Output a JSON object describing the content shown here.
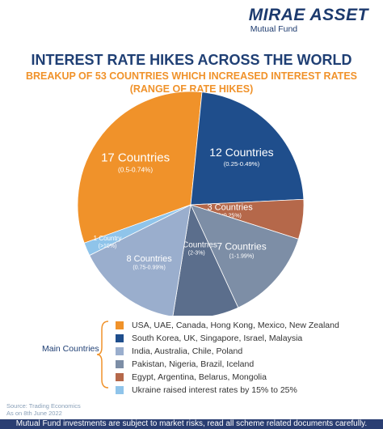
{
  "logo": {
    "main": "MIRAE ASSET",
    "sub": "Mutual Fund"
  },
  "header": {
    "title": "INTEREST RATE HIKES ACROSS THE WORLD",
    "subtitle_line1": "BREAKUP OF 53 COUNTRIES WHICH INCREASED INTEREST RATES",
    "subtitle_line2": "(RANGE OF RATE HIKES)"
  },
  "chart_data": {
    "type": "pie",
    "title": "INTEREST RATE HIKES ACROSS THE WORLD",
    "slices": [
      {
        "label": "17 Countries",
        "range": "(0.5-0.74%)",
        "value": 17,
        "color": "#f0922a"
      },
      {
        "label": "12 Countries",
        "range": "(0.25-0.49%)",
        "value": 12,
        "color": "#1f4e8c"
      },
      {
        "label": "3 Countries",
        "range": "(<0.25%)",
        "value": 3,
        "color": "#b5684a"
      },
      {
        "label": "7 Countries",
        "range": "(1-1.99%)",
        "value": 7,
        "color": "#7d8ea6"
      },
      {
        "label": "5 Countries",
        "range": "(2-3%)",
        "value": 5,
        "color": "#5b6e8c"
      },
      {
        "label": "8 Countries",
        "range": "(0.75-0.99%)",
        "value": 8,
        "color": "#9aaecd"
      },
      {
        "label": "1 Country",
        "range": "(>10%)",
        "value": 1,
        "color": "#8fc4ea"
      }
    ]
  },
  "legend": {
    "group_label": "Main Countries",
    "items": [
      {
        "text": "USA, UAE, Canada, Hong Kong, Mexico, New Zealand",
        "color": "#f0922a"
      },
      {
        "text": "South Korea, UK, Singapore, Israel, Malaysia",
        "color": "#1f4e8c"
      },
      {
        "text": "India, Australia, Chile, Poland",
        "color": "#9aaecd"
      },
      {
        "text": "Pakistan, Nigeria, Brazil, Iceland",
        "color": "#7d8ea6"
      },
      {
        "text": "Egypt, Argentina, Belarus, Mongolia",
        "color": "#b5684a"
      },
      {
        "text": "Ukraine raised interest rates by 15% to 25%",
        "color": "#8fc4ea"
      }
    ]
  },
  "source": {
    "line1": "Source: Trading Economics",
    "line2": "As on 8th June 2022"
  },
  "footer": {
    "disclaimer": "Mutual Fund investments are subject to market risks, read all scheme related documents carefully."
  }
}
